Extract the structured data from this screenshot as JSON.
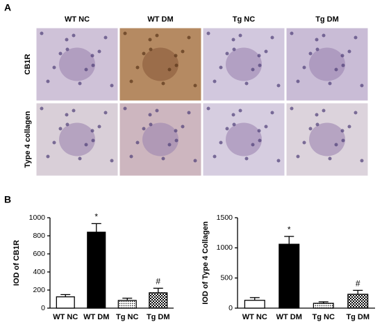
{
  "panel_a": {
    "label": "A",
    "columns": [
      "WT NC",
      "WT DM",
      "Tg NC",
      "Tg DM"
    ],
    "rows": [
      "CB1R",
      "Type 4 collagen"
    ]
  },
  "panel_b": {
    "label": "B"
  },
  "chart_data": [
    {
      "type": "bar",
      "ylabel": "IOD of CB1R",
      "categories": [
        "WT NC",
        "WT DM",
        "Tg NC",
        "Tg DM"
      ],
      "values": [
        125,
        840,
        85,
        170
      ],
      "errors": [
        25,
        95,
        25,
        50
      ],
      "fills": [
        "#ffffff",
        "#000000",
        "dots",
        "checks"
      ],
      "annotations": [
        null,
        "*",
        null,
        "#"
      ],
      "ylim": [
        0,
        1000
      ],
      "yticks": [
        0,
        200,
        400,
        600,
        800,
        1000
      ]
    },
    {
      "type": "bar",
      "ylabel": "IOD of Type 4 Collagen",
      "categories": [
        "WT NC",
        "WT DM",
        "Tg NC",
        "Tg DM"
      ],
      "values": [
        130,
        1060,
        80,
        230
      ],
      "errors": [
        45,
        130,
        25,
        65
      ],
      "fills": [
        "#ffffff",
        "#000000",
        "dots",
        "checks"
      ],
      "annotations": [
        null,
        "*",
        null,
        "#"
      ],
      "ylim": [
        0,
        1500
      ],
      "yticks": [
        0,
        500,
        1000,
        1500
      ]
    }
  ]
}
